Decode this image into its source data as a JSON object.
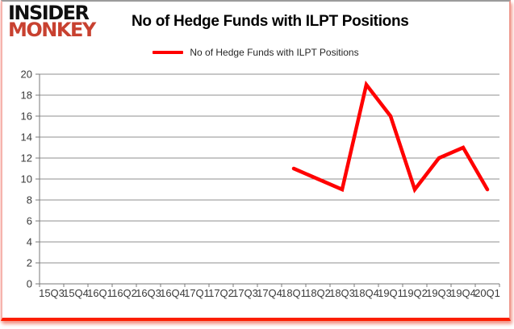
{
  "logo": {
    "line1": "INSIDER",
    "line2": "MONKEY",
    "accent_color": "#c84130"
  },
  "header": {
    "title": "No of Hedge Funds with ILPT Positions"
  },
  "legend": {
    "label": "No of Hedge Funds with ILPT Positions"
  },
  "chart_data": {
    "type": "line",
    "title": "No of Hedge Funds with ILPT Positions",
    "categories": [
      "15Q3",
      "15Q4",
      "16Q1",
      "16Q2",
      "16Q3",
      "16Q4",
      "17Q1",
      "17Q2",
      "17Q3",
      "17Q4",
      "18Q1",
      "18Q2",
      "18Q3",
      "18Q4",
      "19Q1",
      "19Q2",
      "19Q3",
      "19Q4",
      "20Q1"
    ],
    "series": [
      {
        "name": "No of Hedge Funds with ILPT Positions",
        "color": "#ff0000",
        "values": [
          null,
          null,
          null,
          null,
          null,
          null,
          null,
          null,
          null,
          null,
          11,
          10,
          9,
          19,
          16,
          9,
          12,
          13,
          9
        ]
      }
    ],
    "xlabel": "",
    "ylabel": "",
    "ylim": [
      0,
      20
    ],
    "ytick_step": 2,
    "grid": "horizontal",
    "legend_position": "top",
    "gridline_color": "#8f8f8f",
    "axis_color": "#7a7a7a"
  }
}
